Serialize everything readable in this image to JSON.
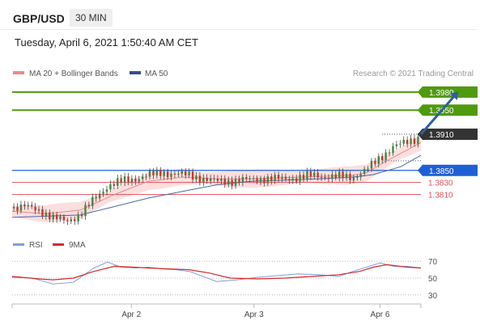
{
  "header": {
    "symbol": "GBP/USD",
    "timeframe": "30 MIN",
    "datetime": "Tuesday, April 6, 2021 1:50:40 AM CET"
  },
  "legend": {
    "ma20": "MA 20 + Bollinger Bands",
    "ma50": "MA 50",
    "credit": "Research © 2021 Trading Central"
  },
  "colors": {
    "target": "#4f9a0e",
    "current": "#333333",
    "pivot": "#1f5fd6",
    "support": "#e0525c",
    "ma50": "#4a68a8",
    "bollinger": "#f7c5c5",
    "ma20": "#e98a8a",
    "arrow": "#2e5fa3",
    "rsi": "#7f9fd8",
    "rsi_ma": "#d42a2a",
    "candle_up": "#3d8a3d",
    "candle_down": "#cc3333"
  },
  "price_levels": [
    {
      "value": 1.398,
      "label": "1.3980",
      "kind": "target"
    },
    {
      "value": 1.395,
      "label": "1.3950",
      "kind": "target"
    },
    {
      "value": 1.391,
      "label": "1.3910",
      "kind": "current"
    },
    {
      "value": 1.385,
      "label": "1.3850",
      "kind": "pivot"
    },
    {
      "value": 1.383,
      "label": "1.3830",
      "kind": "support"
    },
    {
      "value": 1.381,
      "label": "1.3810",
      "kind": "support"
    }
  ],
  "chart_data": [
    {
      "type": "line",
      "title": "GBP/USD 30 MIN",
      "x_tick_labels": [
        "Apr 2",
        "Apr 3",
        "Apr 6"
      ],
      "ylim": [
        1.3745,
        1.4004
      ],
      "series": [
        {
          "name": "Price (close)",
          "x": [
            0,
            4,
            8,
            12,
            16,
            20,
            24,
            28,
            32,
            36,
            40,
            44,
            48,
            52,
            56,
            60,
            64,
            68,
            72,
            76,
            80,
            84,
            88,
            92,
            96,
            100,
            104,
            108,
            112,
            116,
            120
          ],
          "values": [
            1.3787,
            1.379,
            1.3784,
            1.3771,
            1.3766,
            1.3776,
            1.3802,
            1.3824,
            1.3832,
            1.3836,
            1.3842,
            1.3846,
            1.3844,
            1.3842,
            1.3836,
            1.3832,
            1.3832,
            1.3834,
            1.3836,
            1.3836,
            1.3836,
            1.3838,
            1.3842,
            1.384,
            1.384,
            1.3838,
            1.3852,
            1.387,
            1.3891,
            1.3896,
            1.3906
          ]
        },
        {
          "name": "MA 20",
          "x": [
            0,
            10,
            20,
            30,
            40,
            50,
            60,
            70,
            80,
            90,
            100,
            104,
            110,
            120
          ],
          "values": [
            1.3782,
            1.3778,
            1.3784,
            1.381,
            1.3832,
            1.3839,
            1.3836,
            1.3836,
            1.3838,
            1.384,
            1.3842,
            1.3846,
            1.3866,
            1.3896
          ]
        },
        {
          "name": "MA 50",
          "x": [
            0,
            20,
            30,
            40,
            50,
            60,
            70,
            80,
            90,
            100,
            106,
            114,
            120
          ],
          "values": [
            1.3772,
            1.3776,
            1.379,
            1.3804,
            1.3815,
            1.3826,
            1.3832,
            1.3834,
            1.3836,
            1.3839,
            1.3843,
            1.3856,
            1.3875
          ]
        },
        {
          "name": "Target path",
          "x": [
            120,
            131
          ],
          "values": [
            1.391,
            1.398
          ]
        }
      ]
    },
    {
      "type": "line",
      "title": "RSI",
      "ylim": [
        25,
        75
      ],
      "y_tick_labels": [
        "70",
        "50",
        "30"
      ],
      "series": [
        {
          "name": "RSI",
          "x": [
            0,
            6,
            12,
            18,
            24,
            28,
            32,
            36,
            40,
            44,
            48,
            52,
            56,
            60,
            66,
            72,
            78,
            84,
            90,
            96,
            100,
            104,
            108,
            112,
            116,
            120
          ],
          "values": [
            51,
            50,
            43,
            45,
            62,
            69,
            63,
            62,
            63,
            61,
            60,
            58,
            52,
            46,
            48,
            51,
            53,
            55,
            54,
            52,
            58,
            63,
            68,
            64,
            64,
            62
          ]
        },
        {
          "name": "9MA",
          "x": [
            0,
            8,
            12,
            18,
            24,
            30,
            36,
            40,
            46,
            52,
            58,
            64,
            72,
            80,
            88,
            96,
            102,
            106,
            110,
            116,
            120
          ],
          "values": [
            52,
            49,
            48,
            50,
            58,
            64,
            63,
            62,
            61,
            60,
            56,
            50,
            49,
            50,
            52,
            54,
            58,
            63,
            66,
            63,
            62
          ]
        }
      ]
    }
  ]
}
